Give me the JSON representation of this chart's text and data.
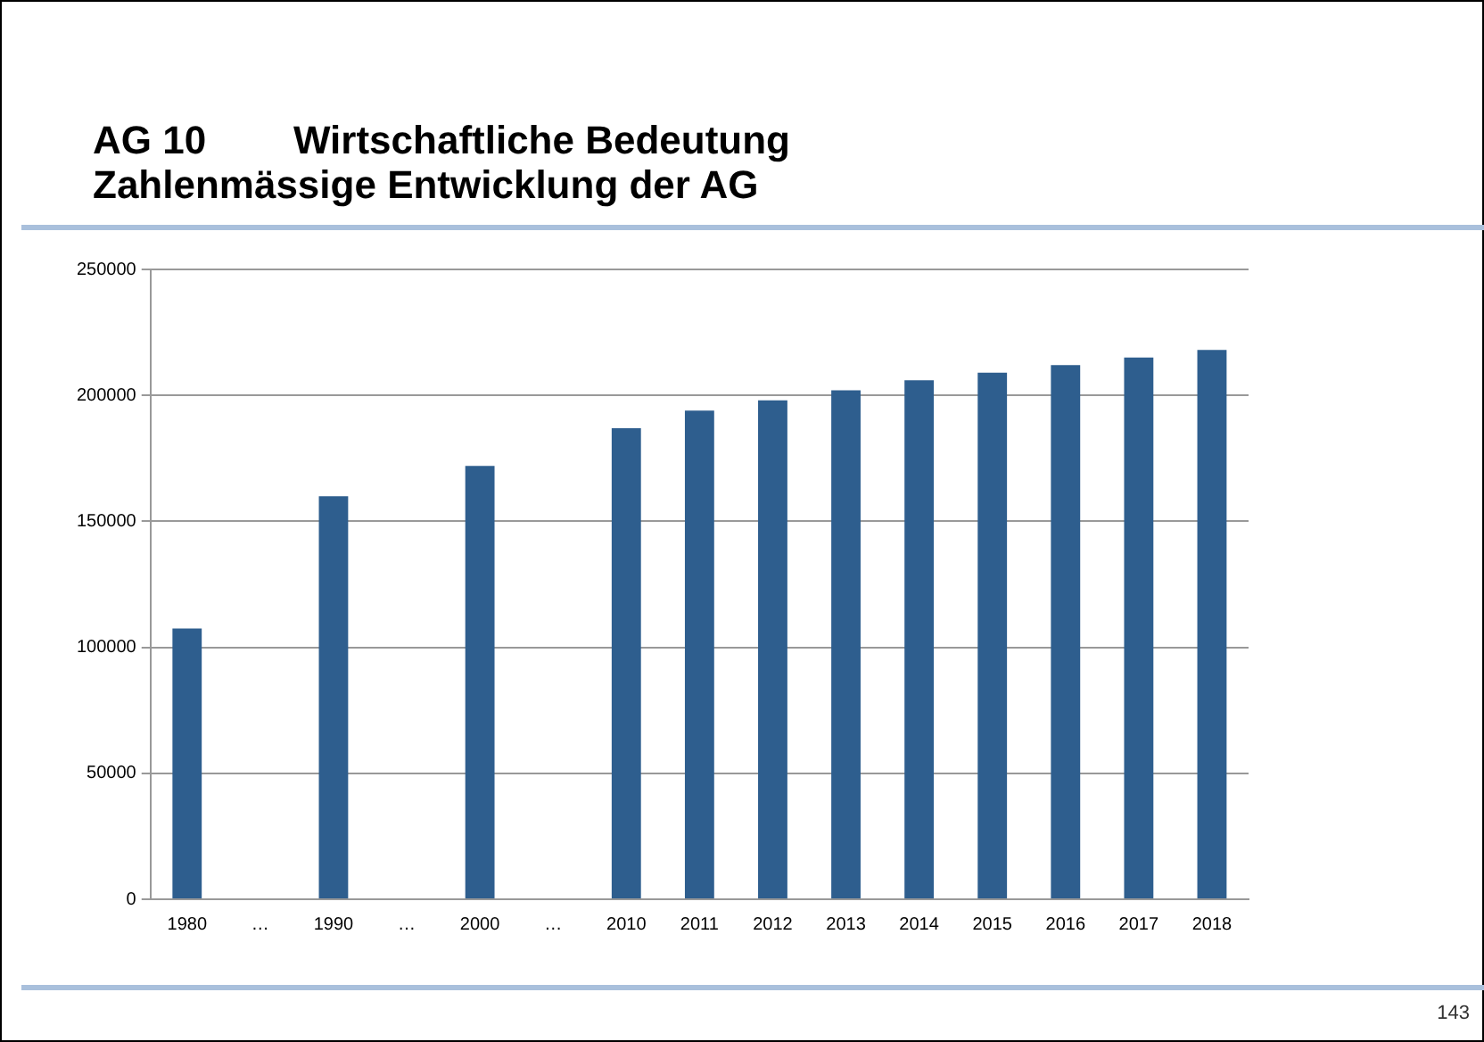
{
  "chart_data": {
    "type": "bar",
    "title": "AG 10        Wirtschaftliche Bedeutung\nZahlenmässige Entwicklung der AG",
    "categories": [
      "1980",
      "…",
      "1990",
      "…",
      "2000",
      "…",
      "2010",
      "2011",
      "2012",
      "2013",
      "2014",
      "2015",
      "2016",
      "2017",
      "2018"
    ],
    "values": [
      107500,
      null,
      160000,
      null,
      172000,
      null,
      187000,
      194000,
      198000,
      202000,
      206000,
      209000,
      212000,
      215000,
      218000
    ],
    "color": "#2e5e8e",
    "ylim": [
      0,
      250000
    ],
    "yticks": [
      0,
      50000,
      100000,
      150000,
      200000,
      250000
    ],
    "grid": "y",
    "legend": false,
    "annotations": [
      "143"
    ]
  }
}
